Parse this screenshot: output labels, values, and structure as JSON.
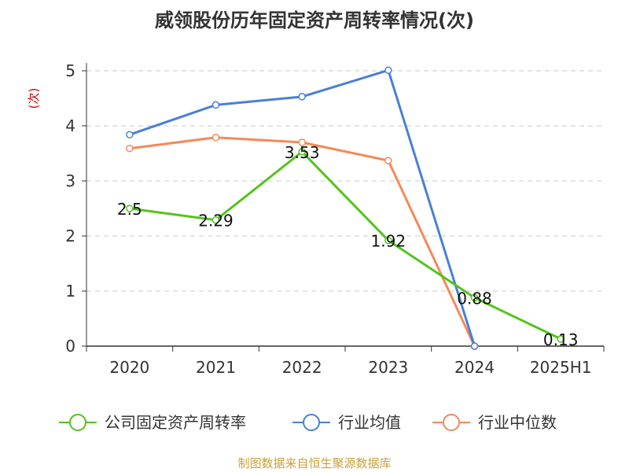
{
  "chart_data": {
    "type": "line",
    "title": "威领股份历年固定资产周转率情况(次)",
    "ylabel": "(次)",
    "xlabel": "",
    "categories": [
      "2020",
      "2021",
      "2022",
      "2023",
      "2024",
      "2025H1"
    ],
    "yticks": [
      "0",
      "1",
      "2",
      "3",
      "4",
      "5"
    ],
    "ylim": [
      0,
      5
    ],
    "grid": "horizontal dashed",
    "legend_position": "bottom",
    "series": [
      {
        "name": "公司固定资产周转率",
        "color": "#52c41a",
        "values": [
          2.5,
          2.29,
          3.53,
          1.92,
          0.88,
          0.13
        ],
        "labels": [
          "2.5",
          "2.29",
          "3.53",
          "1.92",
          "0.88",
          "0.13"
        ]
      },
      {
        "name": "行业均值",
        "color": "#4a7fd8",
        "values": [
          3.84,
          4.38,
          4.53,
          5.01,
          0,
          null
        ]
      },
      {
        "name": "行业中位数",
        "color": "#f5895a",
        "values": [
          3.59,
          3.79,
          3.7,
          3.37,
          0,
          null
        ]
      }
    ],
    "source": "制图数据来自恒生聚源数据库"
  }
}
